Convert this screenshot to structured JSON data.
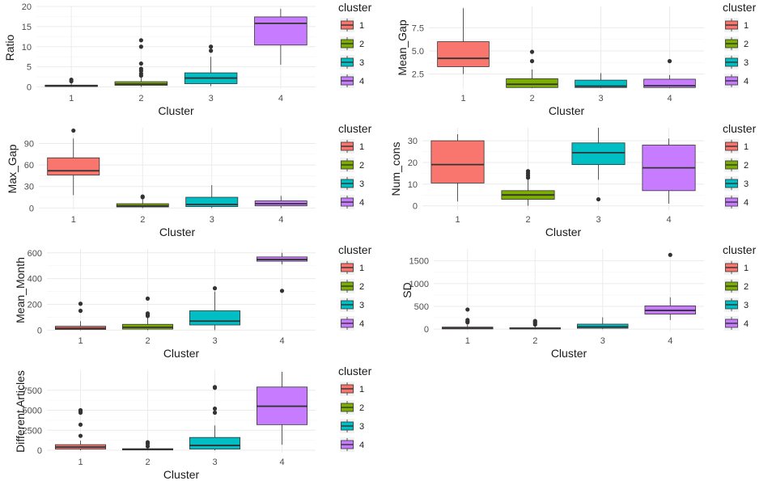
{
  "palette": {
    "1": "#F8766D",
    "2": "#7CAE00",
    "3": "#00BFC4",
    "4": "#C77CFF",
    "grid_major": "#ebebeb",
    "grid_minor": "#f5f5f5",
    "tick_text": "#4d4d4d",
    "title_text": "#1a1a1a",
    "box_line": "#333333"
  },
  "chart_data": [
    {
      "type": "box",
      "title": "",
      "xlabel": "Cluster",
      "ylabel": "Ratio",
      "ylim": [
        -0.5,
        20
      ],
      "yticks": [
        0,
        5,
        10,
        15,
        20
      ],
      "yticklabels": [
        "0",
        "5",
        "10",
        "15",
        "20"
      ],
      "categories": [
        "1",
        "2",
        "3",
        "4"
      ],
      "boxes": [
        {
          "q1": 0.1,
          "median": 0.25,
          "q3": 0.45,
          "lo": 0.0,
          "hi": 0.9,
          "outliers": [
            1.4,
            1.8
          ]
        },
        {
          "q1": 0.4,
          "median": 0.7,
          "q3": 1.3,
          "lo": 0.0,
          "hi": 2.5,
          "outliers": [
            2.8,
            3.3,
            4.0,
            4.5,
            5.8,
            10.0,
            11.6
          ]
        },
        {
          "q1": 0.8,
          "median": 2.2,
          "q3": 3.5,
          "lo": 0.2,
          "hi": 7.5,
          "outliers": [
            9.0,
            10.0
          ]
        },
        {
          "q1": 10.4,
          "median": 15.8,
          "q3": 17.4,
          "lo": 5.5,
          "hi": 19.4,
          "outliers": []
        }
      ],
      "legend": {
        "title": "cluster",
        "labels": [
          "1",
          "2",
          "3",
          "4"
        ]
      }
    },
    {
      "type": "box",
      "title": "",
      "xlabel": "Cluster",
      "ylabel": "Mean_Gap",
      "ylim": [
        0.9,
        9.8
      ],
      "yticks": [
        2.5,
        5.0,
        7.5
      ],
      "yticklabels": [
        "2.5",
        "5.0",
        "7.5"
      ],
      "categories": [
        "1",
        "2",
        "3",
        "4"
      ],
      "boxes": [
        {
          "q1": 3.3,
          "median": 4.2,
          "q3": 6.0,
          "lo": 2.5,
          "hi": 9.6,
          "outliers": []
        },
        {
          "q1": 1.05,
          "median": 1.4,
          "q3": 2.0,
          "lo": 1.0,
          "hi": 3.0,
          "outliers": [
            3.9,
            4.9
          ]
        },
        {
          "q1": 1.05,
          "median": 1.2,
          "q3": 1.85,
          "lo": 1.0,
          "hi": 2.6,
          "outliers": []
        },
        {
          "q1": 1.05,
          "median": 1.25,
          "q3": 1.95,
          "lo": 1.0,
          "hi": 2.4,
          "outliers": [
            3.9
          ]
        }
      ],
      "legend": {
        "title": "cluster",
        "labels": [
          "1",
          "2",
          "3",
          "4"
        ]
      }
    },
    {
      "type": "box",
      "title": "",
      "xlabel": "Cluster",
      "ylabel": "Max_Gap",
      "ylim": [
        -3,
        112
      ],
      "yticks": [
        0,
        30,
        60,
        90
      ],
      "yticklabels": [
        "0",
        "30",
        "60",
        "90"
      ],
      "categories": [
        "1",
        "2",
        "3",
        "4"
      ],
      "boxes": [
        {
          "q1": 46,
          "median": 52,
          "q3": 70,
          "lo": 18,
          "hi": 97,
          "outliers": [
            108
          ]
        },
        {
          "q1": 1.5,
          "median": 3.0,
          "q3": 6.0,
          "lo": 0,
          "hi": 12,
          "outliers": [
            15,
            16
          ]
        },
        {
          "q1": 2,
          "median": 5,
          "q3": 15,
          "lo": 0,
          "hi": 32,
          "outliers": []
        },
        {
          "q1": 3,
          "median": 6,
          "q3": 10,
          "lo": 0,
          "hi": 17,
          "outliers": []
        }
      ],
      "legend": {
        "title": "cluster",
        "labels": [
          "1",
          "2",
          "3",
          "4"
        ]
      }
    },
    {
      "type": "box",
      "title": "",
      "xlabel": "Cluster",
      "ylabel": "Num_cons",
      "ylim": [
        -2,
        36
      ],
      "yticks": [
        0,
        10,
        20,
        30
      ],
      "yticklabels": [
        "0",
        "10",
        "20",
        "30"
      ],
      "categories": [
        "1",
        "2",
        "3",
        "4"
      ],
      "boxes": [
        {
          "q1": 10.5,
          "median": 19,
          "q3": 30,
          "lo": 2,
          "hi": 33,
          "outliers": []
        },
        {
          "q1": 3,
          "median": 5,
          "q3": 7,
          "lo": 0,
          "hi": 12,
          "outliers": [
            13,
            14,
            15,
            16
          ]
        },
        {
          "q1": 19,
          "median": 24.5,
          "q3": 29,
          "lo": 12,
          "hi": 36,
          "outliers": [
            3
          ]
        },
        {
          "q1": 7,
          "median": 17.5,
          "q3": 28,
          "lo": 1,
          "hi": 31,
          "outliers": []
        }
      ],
      "legend": {
        "title": "cluster",
        "labels": [
          "1",
          "2",
          "3",
          "4"
        ]
      }
    },
    {
      "type": "box",
      "title": "",
      "xlabel": "Cluster",
      "ylabel": "Mean_Month",
      "ylim": [
        -10,
        630
      ],
      "yticks": [
        0,
        200,
        400,
        600
      ],
      "yticklabels": [
        "0",
        "200",
        "400",
        "600"
      ],
      "categories": [
        "1",
        "2",
        "3",
        "4"
      ],
      "boxes": [
        {
          "q1": 5,
          "median": 15,
          "q3": 30,
          "lo": 0,
          "hi": 70,
          "outliers": [
            150,
            205
          ]
        },
        {
          "q1": 8,
          "median": 22,
          "q3": 45,
          "lo": 0,
          "hi": 100,
          "outliers": [
            110,
            120,
            130,
            245
          ]
        },
        {
          "q1": 40,
          "median": 70,
          "q3": 150,
          "lo": 0,
          "hi": 300,
          "outliers": [
            325
          ]
        },
        {
          "q1": 535,
          "median": 548,
          "q3": 568,
          "lo": 510,
          "hi": 600,
          "outliers": [
            305
          ]
        }
      ],
      "legend": {
        "title": "cluster",
        "labels": [
          "1",
          "2",
          "3",
          "4"
        ]
      }
    },
    {
      "type": "box",
      "title": "",
      "xlabel": "Cluster",
      "ylabel": "SD",
      "ylim": [
        -50,
        1760
      ],
      "yticks": [
        0,
        500,
        1000,
        1500
      ],
      "yticklabels": [
        "0",
        "500",
        "1000",
        "1500"
      ],
      "categories": [
        "1",
        "2",
        "3",
        "4"
      ],
      "boxes": [
        {
          "q1": 5,
          "median": 20,
          "q3": 45,
          "lo": 0,
          "hi": 100,
          "outliers": [
            150,
            170,
            200,
            430
          ]
        },
        {
          "q1": 5,
          "median": 15,
          "q3": 30,
          "lo": 0,
          "hi": 60,
          "outliers": [
            100,
            130,
            160,
            180
          ]
        },
        {
          "q1": 20,
          "median": 50,
          "q3": 110,
          "lo": 0,
          "hi": 260,
          "outliers": []
        },
        {
          "q1": 330,
          "median": 410,
          "q3": 510,
          "lo": 200,
          "hi": 700,
          "outliers": [
            1630
          ]
        }
      ],
      "legend": {
        "title": "cluster",
        "labels": [
          "1",
          "2",
          "3",
          "4"
        ]
      }
    },
    {
      "type": "box",
      "title": "",
      "xlabel": "Cluster",
      "ylabel": "Different Articles",
      "ylim": [
        -300,
        10000
      ],
      "yticks": [
        0,
        2500,
        5000,
        7500
      ],
      "yticklabels": [
        "0",
        "2500",
        "5000",
        "7500"
      ],
      "categories": [
        "1",
        "2",
        "3",
        "4"
      ],
      "boxes": [
        {
          "q1": 150,
          "median": 400,
          "q3": 700,
          "lo": 0,
          "hi": 1200,
          "outliers": [
            1800,
            3200,
            4700,
            4900,
            5000
          ]
        },
        {
          "q1": 40,
          "median": 100,
          "q3": 200,
          "lo": 0,
          "hi": 350,
          "outliers": [
            500,
            800,
            1000
          ]
        },
        {
          "q1": 150,
          "median": 600,
          "q3": 1600,
          "lo": 0,
          "hi": 3100,
          "outliers": [
            4700,
            5200,
            7800,
            7900
          ]
        },
        {
          "q1": 3200,
          "median": 5500,
          "q3": 7900,
          "lo": 700,
          "hi": 9800,
          "outliers": []
        }
      ],
      "legend": {
        "title": "cluster",
        "labels": [
          "1",
          "2",
          "3",
          "4"
        ]
      }
    }
  ]
}
